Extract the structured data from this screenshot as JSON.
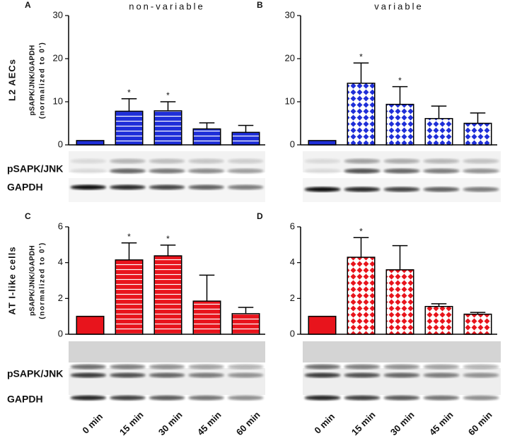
{
  "rows": [
    {
      "label": "L2 AECs",
      "blot_labels": [
        "pSAPK/JNK",
        "GAPDH"
      ]
    },
    {
      "label": "AT I-like cells",
      "blot_labels": [
        "pSAPK/JNK",
        "GAPDH"
      ]
    }
  ],
  "chart_data": [
    {
      "type": "bar",
      "panel": "A",
      "title": "non-variable",
      "ylabel": [
        "pSAPK/JNK/GAPDH",
        "(normalized to 0')"
      ],
      "values": [
        1,
        7.8,
        7.9,
        3.7,
        2.9
      ],
      "errors": [
        null,
        2.9,
        2.1,
        1.4,
        1.6
      ],
      "significance": [
        null,
        "*",
        "*",
        null,
        null
      ],
      "color": "#1f2fd8",
      "pattern": "stripes",
      "ylim": [
        0,
        30
      ],
      "yticks": [
        0,
        10,
        20,
        30
      ]
    },
    {
      "type": "bar",
      "panel": "B",
      "title": "variable",
      "values": [
        1,
        14.3,
        9.4,
        6.1,
        5.0
      ],
      "errors": [
        null,
        4.7,
        4.1,
        2.9,
        2.4
      ],
      "significance": [
        null,
        "*",
        "*",
        null,
        null
      ],
      "color": "#1f2fd8",
      "pattern": "diamonds",
      "ylim": [
        0,
        30
      ],
      "yticks": [
        0,
        10,
        20,
        30
      ]
    },
    {
      "type": "bar",
      "panel": "C",
      "ylabel": [
        "pSAPK/JNK/GAPDH",
        "(normalized to 0')"
      ],
      "categories": [
        "0 min",
        "15 min",
        "30 min",
        "45 min",
        "60 min"
      ],
      "values": [
        1,
        4.15,
        4.38,
        1.85,
        1.15
      ],
      "errors": [
        null,
        0.95,
        0.6,
        1.45,
        0.35
      ],
      "significance": [
        null,
        "*",
        "*",
        null,
        null
      ],
      "color": "#e8141c",
      "pattern": "stripes",
      "ylim": [
        0,
        6
      ],
      "yticks": [
        0,
        2,
        4,
        6
      ]
    },
    {
      "type": "bar",
      "panel": "D",
      "categories": [
        "0 min",
        "15 min",
        "30 min",
        "45 min",
        "60 min"
      ],
      "values": [
        1,
        4.3,
        3.6,
        1.55,
        1.12
      ],
      "errors": [
        null,
        1.1,
        1.35,
        0.15,
        0.1
      ],
      "significance": [
        null,
        "*",
        null,
        null,
        null
      ],
      "color": "#e8141c",
      "pattern": "diamonds",
      "ylim": [
        0,
        6
      ],
      "yticks": [
        0,
        2,
        4,
        6
      ]
    }
  ]
}
